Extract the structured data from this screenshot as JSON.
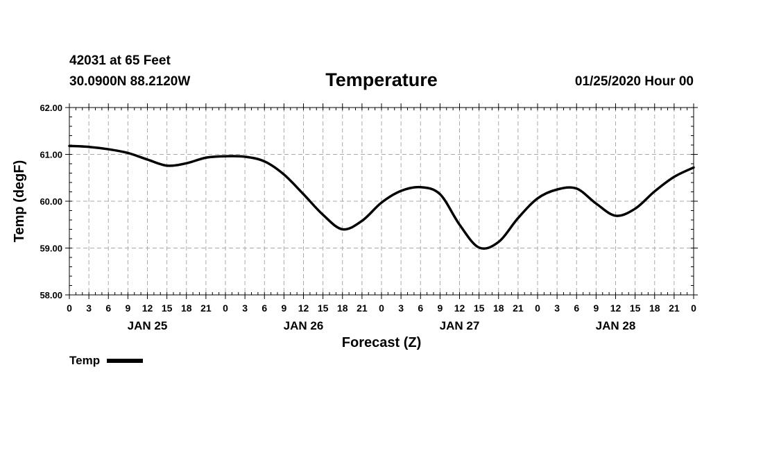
{
  "header": {
    "station": "42031 at 65 Feet",
    "coords": "30.0900N 88.2120W",
    "title": "Temperature",
    "run": "01/25/2020 Hour 00"
  },
  "chart_data": {
    "type": "line",
    "title": "Temperature",
    "ylabel": "Temp (degF)",
    "xlabel": "Forecast (Z)",
    "ylim": [
      58.0,
      62.0
    ],
    "yticks": [
      "58.00",
      "59.00",
      "60.00",
      "61.00",
      "62.00"
    ],
    "xlim": [
      0,
      96
    ],
    "xtick_labels": [
      "0",
      "3",
      "6",
      "9",
      "12",
      "15",
      "18",
      "21",
      "0",
      "3",
      "6",
      "9",
      "12",
      "15",
      "18",
      "21",
      "0",
      "3",
      "6",
      "9",
      "12",
      "15",
      "18",
      "21",
      "0",
      "3",
      "6",
      "9",
      "12",
      "15",
      "18",
      "21",
      "0"
    ],
    "date_labels": [
      {
        "label": "JAN 25",
        "hour": 12
      },
      {
        "label": "JAN 26",
        "hour": 36
      },
      {
        "label": "JAN 27",
        "hour": 60
      },
      {
        "label": "JAN 28",
        "hour": 84
      }
    ],
    "grid": true,
    "legend": "bottom-left",
    "series": [
      {
        "name": "Temp",
        "color": "#000000",
        "x": [
          0,
          3,
          6,
          9,
          12,
          15,
          18,
          21,
          24,
          27,
          30,
          33,
          36,
          39,
          42,
          45,
          48,
          51,
          54,
          57,
          60,
          63,
          66,
          69,
          72,
          75,
          78,
          81,
          84,
          87,
          90,
          93,
          96
        ],
        "values": [
          61.18,
          61.16,
          61.11,
          61.03,
          60.89,
          60.76,
          60.81,
          60.93,
          60.96,
          60.95,
          60.85,
          60.57,
          60.15,
          59.71,
          59.4,
          59.58,
          59.97,
          60.22,
          60.3,
          60.15,
          59.5,
          59.01,
          59.13,
          59.64,
          60.06,
          60.25,
          60.27,
          59.95,
          59.69,
          59.84,
          60.21,
          60.52,
          60.72
        ]
      }
    ]
  }
}
